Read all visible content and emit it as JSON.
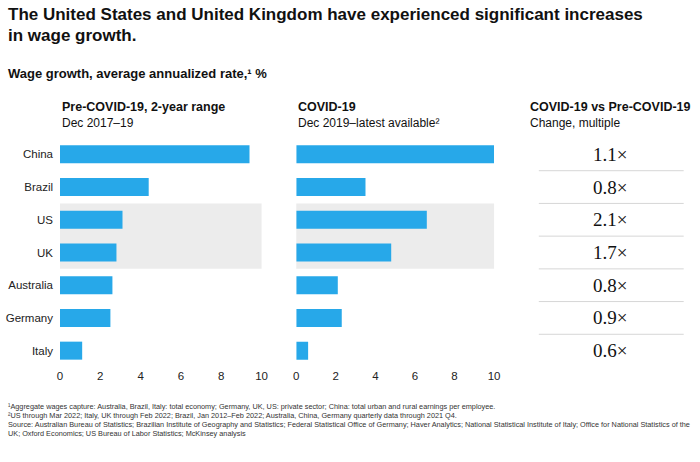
{
  "title": "The United States and United Kingdom have experienced significant increases in wage growth.",
  "subtitle": "Wage growth, average annualized rate,¹ %",
  "chart_data": [
    {
      "type": "bar",
      "orientation": "horizontal",
      "title": "Pre-COVID-19, 2-year range",
      "subtitle": "Dec 2017–19",
      "categories": [
        "China",
        "Brazil",
        "US",
        "UK",
        "Australia",
        "Germany",
        "Italy"
      ],
      "values": [
        9.4,
        4.4,
        3.1,
        2.8,
        2.6,
        2.5,
        1.1
      ],
      "color": "#27a8e9",
      "xlim": [
        0,
        10
      ],
      "xticks": [
        0,
        2,
        4,
        6,
        8,
        10
      ],
      "grid": false
    },
    {
      "type": "bar",
      "orientation": "horizontal",
      "title": "COVID-19",
      "subtitle": "Dec 2019–latest available²",
      "categories": [
        "China",
        "Brazil",
        "US",
        "UK",
        "Australia",
        "Germany",
        "Italy"
      ],
      "values": [
        10.0,
        3.5,
        6.6,
        4.8,
        2.1,
        2.3,
        0.6
      ],
      "color": "#27a8e9",
      "xlim": [
        0,
        10
      ],
      "xticks": [
        0,
        2,
        4,
        6,
        8,
        10
      ],
      "grid": false,
      "tick_labels": "x"
    }
  ],
  "comparison": {
    "title": "COVID-19 vs Pre-COVID-19",
    "subtitle": "Change, multiple",
    "labels": [
      "1.1×",
      "0.8×",
      "2.1×",
      "1.7×",
      "0.8×",
      "0.9×",
      "0.6×"
    ]
  },
  "footnotes": [
    "¹Aggregate wages capture: Australia, Brazil, Italy: total economy; Germany, UK, US: private sector; China: total urban and rural earnings per employee.",
    "²US through Mar 2022; Italy, UK through Feb 2022; Brazil, Jan 2012–Feb 2022; Australia, China, Germany quarterly data through 2021 Q4.",
    "Source: Australian Bureau of Statistics; Brazilian Institute of Geography and Statistics; Federal Statistical Office of Germany; Haver Analytics; National Statistical Institute of Italy; Office for National Statistics of the UK; Oxford Economics; US Bureau of Labor Statistics; McKinsey analysis"
  ]
}
